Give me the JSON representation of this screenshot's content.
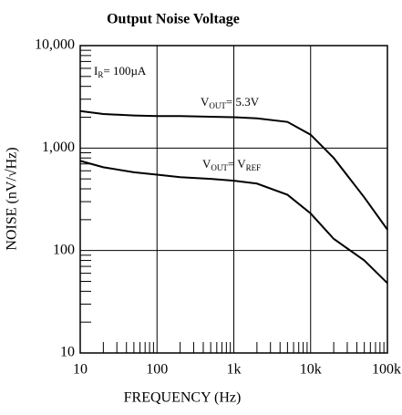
{
  "chart_data": {
    "type": "line",
    "title": "Output Noise Voltage",
    "xlabel": "FREQUENCY (Hz)",
    "ylabel": "NOISE (nV/√Hz)",
    "log_x": true,
    "log_y": true,
    "grid": true,
    "minor_ticks": true,
    "xlim": [
      10,
      100000
    ],
    "ylim": [
      10,
      10000
    ],
    "xticks": [
      10,
      100,
      {
        "value": 1000,
        "label": "1k"
      },
      {
        "value": 10000,
        "label": "10k"
      },
      {
        "value": 100000,
        "label": "100k"
      }
    ],
    "yticks": [
      10,
      100,
      {
        "value": 1000,
        "label": "1,000"
      },
      {
        "value": 10000,
        "label": "10,000"
      }
    ],
    "x": [
      10,
      20,
      50,
      100,
      200,
      500,
      1000,
      2000,
      5000,
      10000,
      20000,
      50000,
      100000
    ],
    "series": [
      {
        "color": "#000000",
        "values": [
          2300,
          2150,
          2080,
          2050,
          2050,
          2020,
          2000,
          1950,
          1800,
          1350,
          800,
          330,
          160
        ]
      },
      {
        "color": "#000000",
        "values": [
          750,
          650,
          580,
          550,
          520,
          500,
          480,
          450,
          350,
          230,
          130,
          80,
          48
        ]
      }
    ],
    "annotations": [
      {
        "main": "I",
        "sub": "R",
        "rest": "= 100µA"
      },
      {
        "main": "V",
        "sub": "OUT",
        "rest": "= 5.3V"
      },
      {
        "main": "V",
        "sub": "OUT",
        "rest": "= V",
        "sub2": "REF"
      }
    ]
  }
}
